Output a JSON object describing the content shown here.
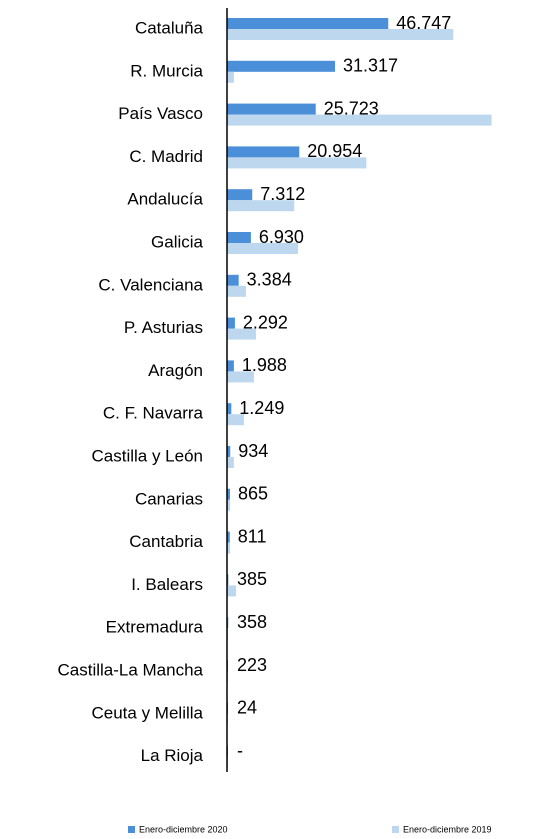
{
  "chart_data": {
    "type": "bar",
    "orientation": "horizontal",
    "categories": [
      "Cataluña",
      "R. Murcia",
      "País Vasco",
      "C. Madrid",
      "Andalucía",
      "Galicia",
      "C. Valenciana",
      "P. Asturias",
      "Aragón",
      "C. F. Navarra",
      "Castilla y León",
      "Canarias",
      "Cantabria",
      "I. Balears",
      "Extremadura",
      "Castilla-La Mancha",
      "Ceuta y Melilla",
      "La Rioja"
    ],
    "series": [
      {
        "name": "Enero-diciembre 2020",
        "color": "#4a8fd8",
        "values": [
          46747,
          31317,
          25723,
          20954,
          7312,
          6930,
          3384,
          2292,
          1988,
          1249,
          934,
          865,
          811,
          385,
          358,
          223,
          24,
          0
        ],
        "value_labels": [
          "46.747",
          "31.317",
          "25.723",
          "20.954",
          "7.312",
          "6.930",
          "3.384",
          "2.292",
          "1.988",
          "1.249",
          "934",
          "865",
          "811",
          "385",
          "358",
          "223",
          "24",
          "-"
        ]
      },
      {
        "name": "Enero-diciembre 2019",
        "color": "#bdd7ee",
        "values": [
          65600,
          2000,
          76700,
          40400,
          19500,
          20600,
          5500,
          8400,
          7800,
          4900,
          2000,
          900,
          900,
          2600,
          300,
          300,
          200,
          200
        ]
      }
    ],
    "xlim": [
      0,
      89000
    ]
  }
}
